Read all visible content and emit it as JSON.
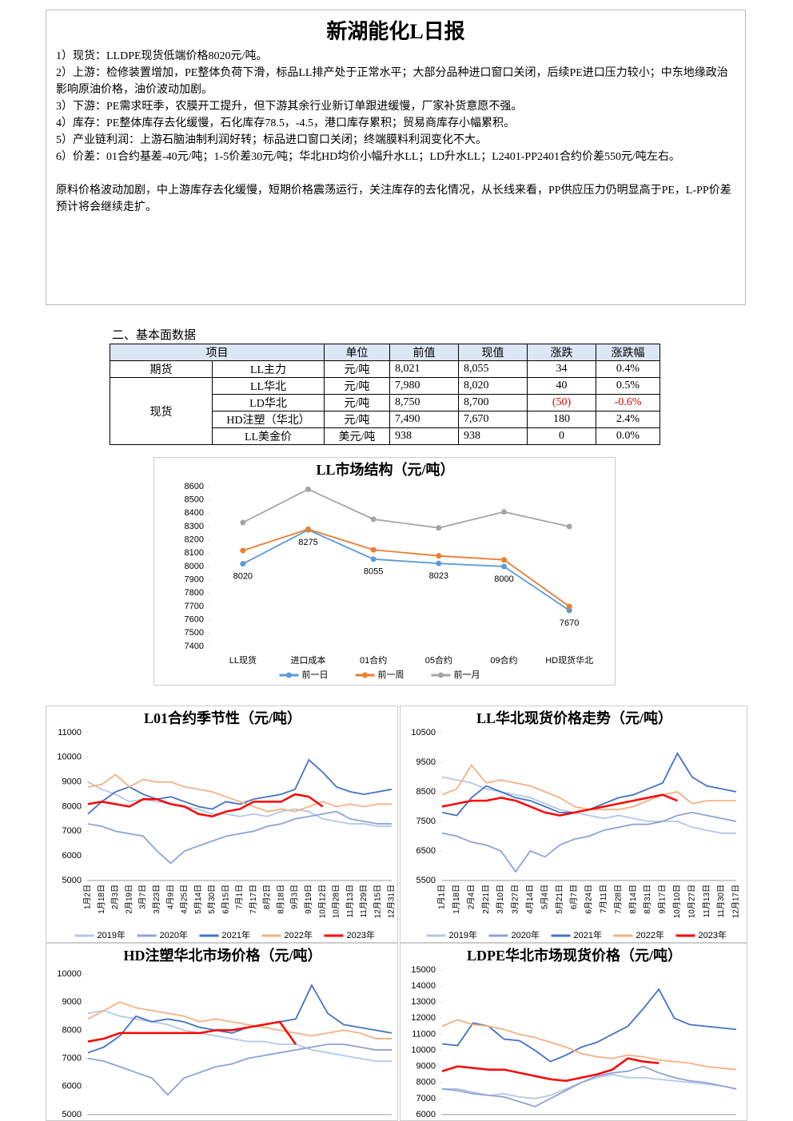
{
  "header": {
    "title": "新湖能化L日报",
    "paragraphs": [
      "1）现货：LLDPE现货低端价格8020元/吨。",
      "2）上游：检修装置增加，PE整体负荷下滑，标品LL排产处于正常水平；大部分品种进口窗口关闭，后续PE进口压力较小；中东地缘政治影响原油价格，油价波动加剧。",
      "3）下游：PE需求旺季，农膜开工提升，但下游其余行业新订单跟进缓慢，厂家补货意愿不强。",
      "4）库存：PE整体库存去化缓慢，石化库存78.5，-4.5，港口库存累积；贸易商库存小幅累积。",
      "5）产业链利润：上游石脑油制利润好转；标品进口窗口关闭；终端膜料利润变化不大。",
      "6）价差：01合约基差-40元/吨；1-5价差30元/吨；华北HD均价小幅升水LL；LD升水LL；L2401-PP2401合约价差550元/吨左右。"
    ],
    "summary": "原料价格波动加剧，中上游库存去化缓慢，短期价格震荡运行，关注库存的去化情况，从长线来看，PP供应压力仍明显高于PE，L-PP价差预计将会继续走扩。"
  },
  "section": "二、基本面数据",
  "table": {
    "header": [
      "项目",
      "单位",
      "前值",
      "现值",
      "涨跌",
      "涨跌幅"
    ],
    "rows": [
      [
        "期货",
        "LL主力",
        "元/吨",
        "8,021",
        "8,055",
        "34",
        "0.4%"
      ],
      [
        "现货",
        "LL华北",
        "元/吨",
        "7,980",
        "8,020",
        "40",
        "0.5%"
      ],
      [
        "LD华北",
        "元/吨",
        "8,750",
        "8,700",
        "(50)",
        "-0.6%"
      ],
      [
        "HD注塑（华北）",
        "元/吨",
        "7,490",
        "7,670",
        "180",
        "2.4%"
      ],
      [
        "LL美金价",
        "美元/吨",
        "938",
        "938",
        "0",
        "0.0%"
      ]
    ]
  },
  "chart_data": [
    {
      "type": "line",
      "title": "LL市场结构（元/吨）",
      "categories": [
        "LL现货",
        "进口成本",
        "01合约",
        "05合约",
        "09合约",
        "HD现货华北"
      ],
      "ylim": [
        7400,
        8600
      ],
      "yticks": [
        7400,
        7500,
        7600,
        7700,
        7800,
        7900,
        8000,
        8100,
        8200,
        8300,
        8400,
        8500,
        8600
      ],
      "markers": true,
      "series": [
        {
          "name": "前一日",
          "color": "#5b9bd5",
          "labels": true,
          "values": [
            8020,
            8275,
            8055,
            8023,
            8000,
            7670
          ]
        },
        {
          "name": "前一周",
          "color": "#ed7d31",
          "values": [
            8120,
            8280,
            8125,
            8080,
            8050,
            7700
          ]
        },
        {
          "name": "前一月",
          "color": "#a5a5a5",
          "values": [
            8330,
            8580,
            8355,
            8290,
            8410,
            8300
          ]
        }
      ]
    },
    {
      "type": "line",
      "title": "L01合约季节性（元/吨）",
      "categories": [
        "1月2日",
        "1月18日",
        "2月3日",
        "2月19日",
        "3月7日",
        "3月23日",
        "4月9日",
        "4月25日",
        "5月14日",
        "5月30日",
        "6月15日",
        "7月1日",
        "7月17日",
        "8月2日",
        "8月18日",
        "9月3日",
        "9月19日",
        "10月12日",
        "10月28日",
        "11月13日",
        "11月29日",
        "12月15日",
        "12月31日"
      ],
      "ylim": [
        5000,
        11000
      ],
      "yticks": [
        5000,
        6000,
        7000,
        8000,
        9000,
        10000,
        11000
      ],
      "series": [
        {
          "name": "2019年",
          "color": "#b4c7e7",
          "values": [
            9000,
            8700,
            8500,
            8200,
            8300,
            8200,
            8100,
            8000,
            7900,
            7700,
            7700,
            7600,
            7700,
            7600,
            7800,
            7900,
            7800,
            7500,
            7400,
            7300,
            7300,
            7200,
            7200
          ]
        },
        {
          "name": "2020年",
          "color": "#8fa2d4",
          "values": [
            7300,
            7200,
            7000,
            6900,
            6800,
            6200,
            5700,
            6200,
            6400,
            6600,
            6800,
            6900,
            7000,
            7200,
            7300,
            7500,
            7600,
            7700,
            7800,
            7500,
            7400,
            7300,
            7300
          ]
        },
        {
          "name": "2021年",
          "color": "#4472c4",
          "values": [
            7700,
            8200,
            8600,
            8800,
            8500,
            8300,
            8400,
            8200,
            8000,
            7900,
            8200,
            8100,
            8300,
            8400,
            8500,
            8700,
            9900,
            9400,
            8800,
            8600,
            8500,
            8600,
            8700
          ]
        },
        {
          "name": "2022年",
          "color": "#f4b183",
          "values": [
            8800,
            8900,
            9300,
            8800,
            9100,
            9000,
            9000,
            8800,
            8700,
            8600,
            8400,
            8200,
            8000,
            7800,
            7900,
            7800,
            8000,
            8200,
            8000,
            8100,
            8000,
            8100,
            8100
          ]
        },
        {
          "name": "2023年",
          "color": "#ff0000",
          "values": [
            8100,
            8200,
            8100,
            8000,
            8300,
            8300,
            8100,
            8000,
            7700,
            7600,
            7800,
            7900,
            8200,
            8200,
            8200,
            8500,
            8400,
            8000,
            null,
            null,
            null,
            null,
            null
          ]
        }
      ]
    },
    {
      "type": "line",
      "title": "LL华北现货价格走势（元/吨）",
      "categories": [
        "1月1日",
        "1月18日",
        "2月4日",
        "2月21日",
        "3月10日",
        "3月27日",
        "4月14日",
        "5月4日",
        "5月21日",
        "6月7日",
        "6月24日",
        "7月11日",
        "7月28日",
        "8月14日",
        "8月31日",
        "9月17日",
        "10月10日",
        "10月27日",
        "11月13日",
        "11月30日",
        "12月17日"
      ],
      "ylim": [
        5500,
        10500
      ],
      "yticks": [
        5500,
        6500,
        7500,
        8500,
        9500,
        10500
      ],
      "series": [
        {
          "name": "2019年",
          "color": "#b4c7e7",
          "values": [
            9000,
            8900,
            8800,
            8600,
            8500,
            8400,
            8300,
            8100,
            7900,
            7800,
            7700,
            7600,
            7700,
            7600,
            7500,
            7500,
            7500,
            7300,
            7200,
            7100,
            7100
          ]
        },
        {
          "name": "2020年",
          "color": "#8fa2d4",
          "values": [
            7100,
            7000,
            6800,
            6700,
            6500,
            5800,
            6500,
            6300,
            6700,
            6900,
            7000,
            7200,
            7300,
            7400,
            7400,
            7500,
            7700,
            7800,
            7700,
            7600,
            7500
          ]
        },
        {
          "name": "2021年",
          "color": "#4472c4",
          "values": [
            7800,
            7700,
            8300,
            8700,
            8500,
            8300,
            8200,
            8000,
            7800,
            7800,
            7900,
            8100,
            8300,
            8400,
            8600,
            8800,
            9800,
            9000,
            8700,
            8600,
            8500
          ]
        },
        {
          "name": "2022年",
          "color": "#f4b183",
          "values": [
            8400,
            8600,
            9400,
            8800,
            8900,
            8800,
            8700,
            8500,
            8300,
            8000,
            7900,
            7900,
            7900,
            8000,
            8200,
            8400,
            8500,
            8100,
            8200,
            8200,
            8200
          ]
        },
        {
          "name": "2023年",
          "color": "#ff0000",
          "values": [
            8000,
            8100,
            8200,
            8200,
            8300,
            8200,
            8000,
            7800,
            7700,
            7800,
            7900,
            8000,
            8100,
            8200,
            8300,
            8400,
            8200,
            null,
            null,
            null,
            null
          ]
        }
      ]
    },
    {
      "type": "line",
      "title": "HD注塑华北市场价格（元/吨）",
      "ylim": [
        5000,
        10000
      ],
      "yticks": [
        5000,
        6000,
        7000,
        8000,
        9000,
        10000
      ],
      "series": [
        {
          "color": "#b4c7e7",
          "values": [
            8600,
            8700,
            8500,
            8400,
            8300,
            8200,
            8000,
            7900,
            7800,
            7700,
            7600,
            7600,
            7500,
            7500,
            7300,
            7200,
            7100,
            7000,
            6900,
            6900
          ]
        },
        {
          "color": "#8fa2d4",
          "values": [
            7000,
            6900,
            6700,
            6500,
            6300,
            5700,
            6300,
            6500,
            6700,
            6800,
            7000,
            7100,
            7200,
            7300,
            7400,
            7500,
            7500,
            7400,
            7300,
            7300
          ]
        },
        {
          "color": "#4472c4",
          "values": [
            7200,
            7400,
            7800,
            8500,
            8300,
            8400,
            8300,
            8100,
            8000,
            7900,
            8100,
            8200,
            8300,
            8400,
            9600,
            8600,
            8200,
            8100,
            8000,
            7900
          ]
        },
        {
          "color": "#f4b183",
          "values": [
            8400,
            8700,
            9000,
            8800,
            8700,
            8600,
            8500,
            8300,
            8400,
            8300,
            8200,
            8100,
            8000,
            7900,
            7800,
            7900,
            8000,
            7900,
            7700,
            7700
          ]
        },
        {
          "color": "#ff0000",
          "values": [
            7600,
            7700,
            7900,
            7900,
            7900,
            7900,
            7900,
            7900,
            8000,
            8000,
            8100,
            8200,
            8300,
            7500,
            null,
            null,
            null,
            null,
            null,
            null
          ]
        }
      ]
    },
    {
      "type": "line",
      "title": "LDPE华北市场现货价格（元/吨）",
      "ylim": [
        6000,
        15000
      ],
      "yticks": [
        6000,
        7000,
        8000,
        9000,
        10000,
        11000,
        12000,
        13000,
        14000,
        15000
      ],
      "series": [
        {
          "color": "#b4c7e7",
          "values": [
            7600,
            7600,
            7400,
            7200,
            7300,
            7100,
            7000,
            7200,
            7600,
            8000,
            8300,
            8500,
            8300,
            8300,
            8200,
            8100,
            8000,
            7900,
            7800,
            7600
          ]
        },
        {
          "color": "#8fa2d4",
          "values": [
            7600,
            7500,
            7300,
            7200,
            7100,
            6800,
            6500,
            7000,
            7500,
            8000,
            8400,
            8600,
            8700,
            9000,
            8600,
            8300,
            8100,
            8000,
            7800,
            7600
          ]
        },
        {
          "color": "#4472c4",
          "values": [
            10400,
            10300,
            11700,
            11500,
            10700,
            10600,
            10000,
            9300,
            9700,
            10200,
            10500,
            11000,
            11500,
            12600,
            13800,
            12000,
            11600,
            11500,
            11400,
            11300
          ]
        },
        {
          "color": "#f4b183",
          "values": [
            11500,
            11900,
            11600,
            11500,
            11300,
            11000,
            10800,
            10500,
            10200,
            9800,
            9600,
            9500,
            9700,
            9600,
            9400,
            9300,
            9200,
            9000,
            8900,
            8800
          ]
        },
        {
          "color": "#ff0000",
          "values": [
            8700,
            9000,
            8900,
            8800,
            8800,
            8600,
            8400,
            8200,
            8100,
            8300,
            8500,
            8800,
            9500,
            9300,
            9200,
            null,
            null,
            null,
            null,
            null
          ]
        }
      ]
    }
  ]
}
